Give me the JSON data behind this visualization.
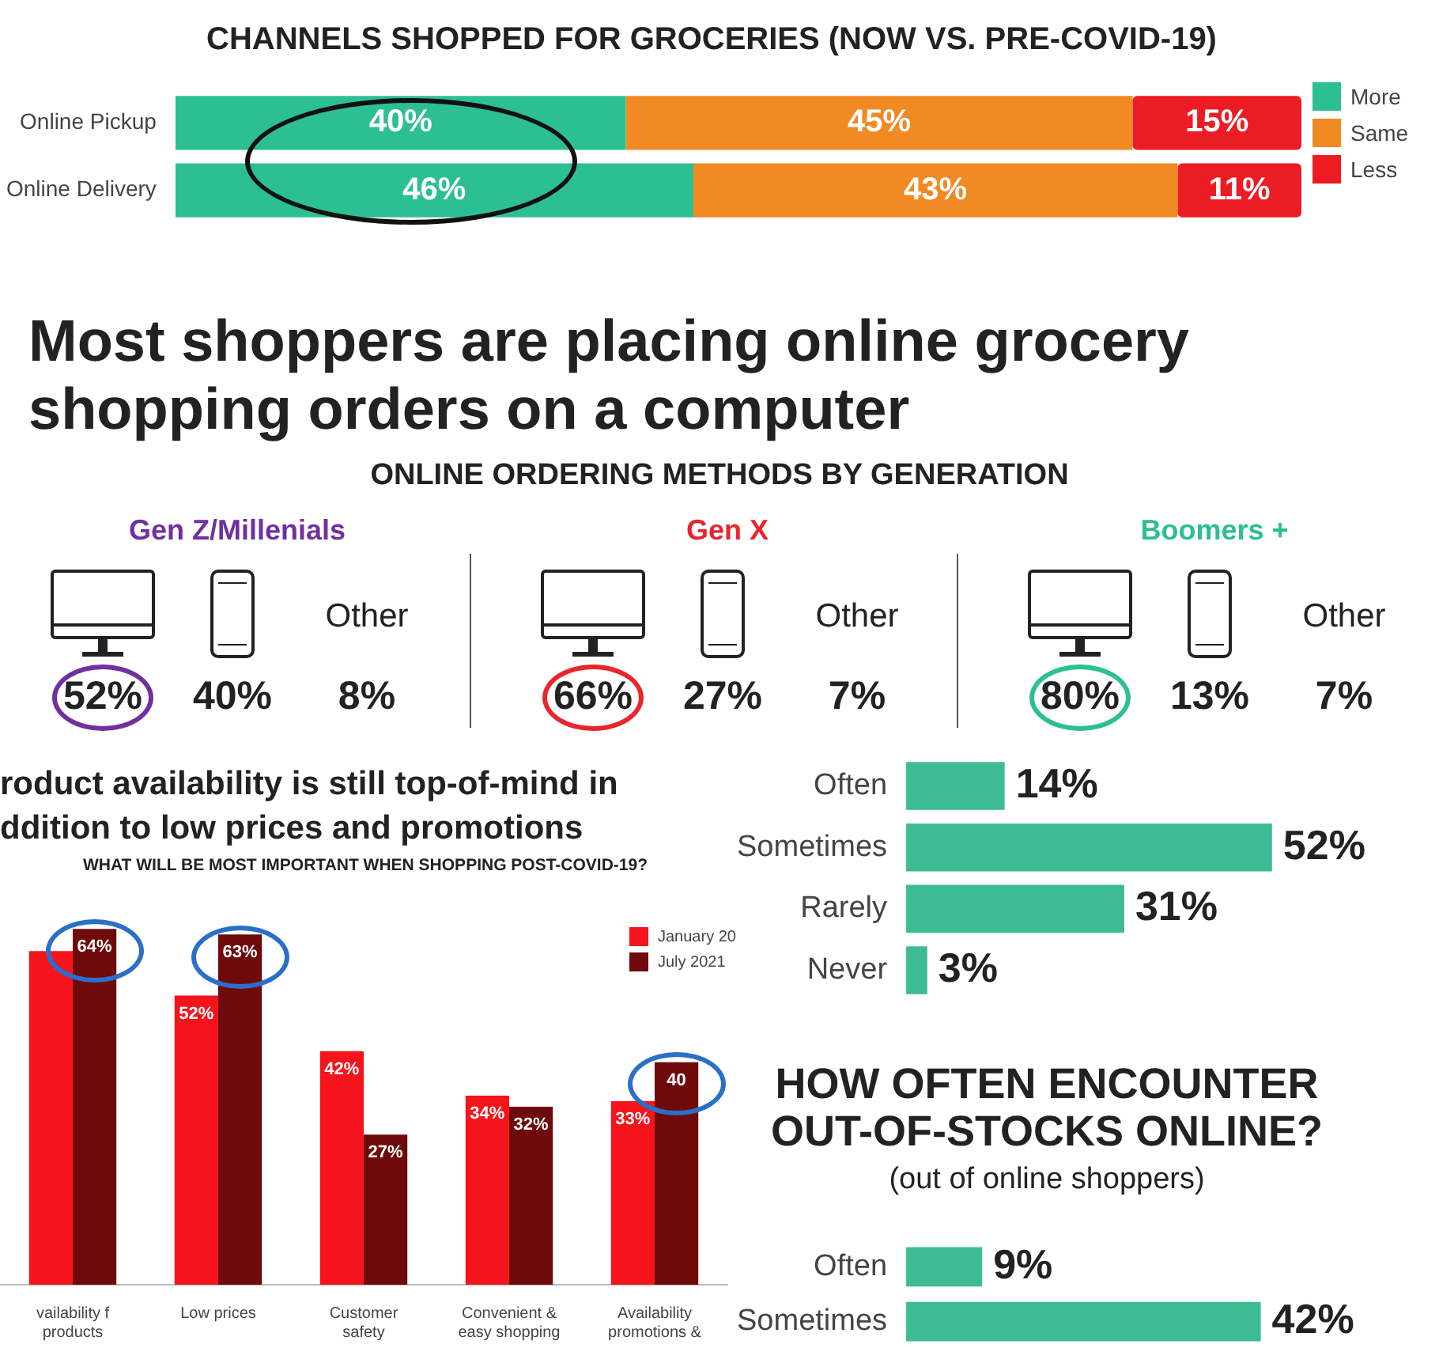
{
  "chart_data": [
    {
      "type": "bar",
      "orientation": "horizontal",
      "stacked": true,
      "title": "CHANNELS SHOPPED FOR GROCERIES (NOW VS. PRE-COVID-19)",
      "categories": [
        "Online Pickup",
        "Online Delivery"
      ],
      "legend": "right",
      "series": [
        {
          "name": "More",
          "color": "#2dbf94",
          "values": [
            40,
            46
          ],
          "value_labels": [
            "40%",
            "46%"
          ]
        },
        {
          "name": "Same",
          "color": "#f28a24",
          "values": [
            45,
            43
          ],
          "value_labels": [
            "45%",
            "43%"
          ]
        },
        {
          "name": "Less",
          "color": "#ec1c24",
          "values": [
            15,
            11
          ],
          "value_labels": [
            "15%",
            "11%"
          ]
        }
      ]
    },
    {
      "type": "other",
      "title": "Most shoppers are placing online grocery shopping orders on a computer",
      "subtitle": "ONLINE ORDERING METHODS BY GENERATION",
      "categories": [
        "Gen Z/Millenials",
        "Gen X",
        "Boomers +"
      ],
      "series": [
        {
          "colors": [
            "#7030a0",
            "#e8262b",
            "#2dbf94"
          ],
          "values": [
            52,
            66,
            80
          ],
          "value_labels": [
            "52%",
            "66%",
            "80%"
          ]
        },
        {
          "values": [
            40,
            27,
            13
          ],
          "value_labels": [
            "40%",
            "27%",
            "13%"
          ]
        },
        {
          "name": "Other",
          "values": [
            8,
            7,
            7
          ],
          "value_labels": [
            "8%",
            "7%",
            "7%"
          ]
        }
      ]
    },
    {
      "type": "bar",
      "title": "roduct availability is still top-of-mind in ddition to low prices and promotions",
      "subtitle": "WHAT WILL BE MOST IMPORTANT WHEN SHOPPING POST-COVID-19?",
      "categories": [
        "vailability f products",
        "Low prices",
        "Customer safety",
        "Convenient & easy shopping",
        "Availability promotions &"
      ],
      "legend": "top right",
      "series": [
        {
          "name": "January 20",
          "color": "#f5141b",
          "values": [
            60,
            52,
            42,
            34,
            33
          ],
          "value_labels": [
            null,
            "52%",
            "42%",
            "34%",
            "33%"
          ]
        },
        {
          "name": "July 2021",
          "color": "#6e0a0a",
          "values": [
            64,
            63,
            27,
            32,
            40
          ],
          "value_labels": [
            "64%",
            "63%",
            "27%",
            "32%",
            "40"
          ]
        }
      ]
    },
    {
      "type": "bar",
      "orientation": "horizontal",
      "categories": [
        "Often",
        "Sometimes",
        "Rarely",
        "Never"
      ],
      "series": [
        {
          "color": "#3dbb94",
          "values": [
            14,
            52,
            31,
            3
          ],
          "value_labels": [
            "14%",
            "52%",
            "31%",
            "3%"
          ]
        }
      ]
    },
    {
      "type": "bar",
      "orientation": "horizontal",
      "title": "HOW OFTEN ENCOUNTER OUT-OF-STOCKS ONLINE?",
      "subtitle": "(out of online shoppers)",
      "categories": [
        "Often",
        "Sometimes"
      ],
      "series": [
        {
          "color": "#3dbb94",
          "values": [
            9,
            42
          ],
          "value_labels": [
            "9%",
            "42%"
          ]
        }
      ]
    }
  ]
}
